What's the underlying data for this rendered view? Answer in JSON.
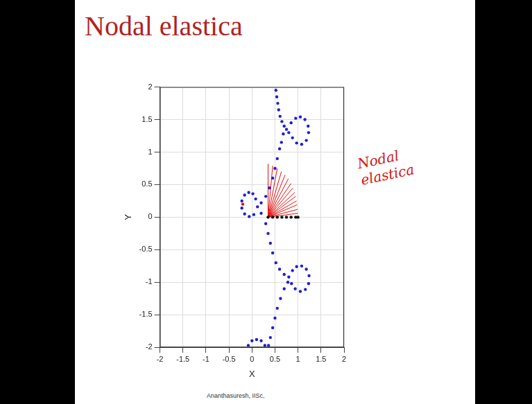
{
  "chart_data": {
    "type": "scatter",
    "title": "Nodal elastica",
    "x_label": "X",
    "y_label": "Y",
    "annotation": "Nodal elastica",
    "footnote": "Ananthasuresh, IISc,",
    "xlim": [
      -2,
      2
    ],
    "ylim": [
      -2,
      2
    ],
    "xticks": [
      -2,
      -1.5,
      -1,
      -0.5,
      0,
      0.5,
      1,
      1.5,
      2
    ],
    "yticks": [
      -2,
      -1.5,
      -1,
      -0.5,
      0,
      0.5,
      1,
      1.5,
      2
    ],
    "grid": true,
    "series": [
      {
        "type": "scatter",
        "color": "#1f1fd0",
        "marker": "circle",
        "values": [
          [
            0.52,
            1.95
          ],
          [
            0.54,
            1.85
          ],
          [
            0.56,
            1.75
          ],
          [
            0.58,
            1.65
          ],
          [
            0.61,
            1.55
          ],
          [
            0.65,
            1.47
          ],
          [
            0.7,
            1.4
          ],
          [
            0.75,
            1.35
          ],
          [
            0.85,
            1.45
          ],
          [
            0.95,
            1.52
          ],
          [
            1.05,
            1.54
          ],
          [
            1.15,
            1.5
          ],
          [
            1.22,
            1.4
          ],
          [
            1.23,
            1.3
          ],
          [
            1.18,
            1.18
          ],
          [
            1.08,
            1.12
          ],
          [
            0.97,
            1.14
          ],
          [
            0.88,
            1.22
          ],
          [
            0.8,
            1.3
          ],
          [
            0.68,
            1.28
          ],
          [
            0.64,
            1.15
          ],
          [
            0.6,
            1.05
          ],
          [
            0.55,
            0.9
          ],
          [
            0.5,
            0.75
          ],
          [
            0.45,
            0.6
          ],
          [
            0.38,
            0.45
          ],
          [
            0.3,
            0.32
          ],
          [
            0.2,
            0.22
          ],
          [
            0.12,
            0.16
          ],
          [
            0.08,
            0.28
          ],
          [
            0.02,
            0.36
          ],
          [
            -0.07,
            0.38
          ],
          [
            -0.16,
            0.34
          ],
          [
            -0.22,
            0.25
          ],
          [
            -0.22,
            0.14
          ],
          [
            -0.16,
            0.05
          ],
          [
            -0.06,
            0.01
          ],
          [
            0.04,
            0.04
          ],
          [
            0.2,
            0.06
          ],
          [
            0.3,
            -0.1
          ],
          [
            0.35,
            -0.25
          ],
          [
            0.4,
            -0.4
          ],
          [
            0.45,
            -0.55
          ],
          [
            0.52,
            -0.7
          ],
          [
            0.6,
            -0.8
          ],
          [
            0.7,
            -0.88
          ],
          [
            0.8,
            -0.92
          ],
          [
            0.88,
            -0.82
          ],
          [
            0.97,
            -0.76
          ],
          [
            1.08,
            -0.75
          ],
          [
            1.18,
            -0.8
          ],
          [
            1.24,
            -0.9
          ],
          [
            1.23,
            -1.02
          ],
          [
            1.16,
            -1.11
          ],
          [
            1.05,
            -1.14
          ],
          [
            0.94,
            -1.1
          ],
          [
            0.86,
            -1.02
          ],
          [
            0.78,
            -1.0
          ],
          [
            0.7,
            -1.1
          ],
          [
            0.62,
            -1.25
          ],
          [
            0.55,
            -1.4
          ],
          [
            0.5,
            -1.55
          ],
          [
            0.45,
            -1.7
          ],
          [
            0.4,
            -1.85
          ],
          [
            0.36,
            -1.97
          ],
          [
            0.28,
            -1.97
          ],
          [
            0.2,
            -1.9
          ],
          [
            0.1,
            -1.88
          ],
          [
            0.0,
            -1.9
          ],
          [
            -0.08,
            -1.97
          ]
        ]
      },
      {
        "type": "scatter",
        "color": "#111111",
        "marker": "circle",
        "values": [
          [
            0.35,
            0
          ],
          [
            0.45,
            0
          ],
          [
            0.55,
            0
          ],
          [
            0.65,
            0
          ],
          [
            0.75,
            0
          ],
          [
            0.85,
            0
          ],
          [
            0.95,
            0
          ],
          [
            1.0,
            0
          ]
        ]
      },
      {
        "type": "scatter",
        "color": "#e01010",
        "marker": "circle",
        "values": [
          [
            -0.2,
            0.2
          ]
        ]
      },
      {
        "type": "line",
        "color": "#e01010",
        "line_style": "solid",
        "values": [
          [
            0.35,
            0
          ],
          [
            1.0,
            0.06
          ]
        ]
      },
      {
        "type": "line",
        "color": "#e01010",
        "line_style": "solid",
        "values": [
          [
            0.35,
            0
          ],
          [
            0.99,
            0.12
          ]
        ]
      },
      {
        "type": "line",
        "color": "#e01010",
        "line_style": "solid",
        "values": [
          [
            0.35,
            0
          ],
          [
            0.98,
            0.19
          ]
        ]
      },
      {
        "type": "line",
        "color": "#e01010",
        "line_style": "solid",
        "values": [
          [
            0.35,
            0
          ],
          [
            0.97,
            0.25
          ]
        ]
      },
      {
        "type": "line",
        "color": "#e01010",
        "line_style": "solid",
        "values": [
          [
            0.35,
            0
          ],
          [
            0.95,
            0.32
          ]
        ]
      },
      {
        "type": "line",
        "color": "#e01010",
        "line_style": "solid",
        "values": [
          [
            0.35,
            0
          ],
          [
            0.93,
            0.38
          ]
        ]
      },
      {
        "type": "line",
        "color": "#e01010",
        "line_style": "solid",
        "values": [
          [
            0.35,
            0
          ],
          [
            0.89,
            0.45
          ]
        ]
      },
      {
        "type": "line",
        "color": "#e01010",
        "line_style": "solid",
        "values": [
          [
            0.35,
            0
          ],
          [
            0.85,
            0.52
          ]
        ]
      },
      {
        "type": "line",
        "color": "#e01010",
        "line_style": "solid",
        "values": [
          [
            0.35,
            0
          ],
          [
            0.79,
            0.59
          ]
        ]
      },
      {
        "type": "line",
        "color": "#e01010",
        "line_style": "solid",
        "values": [
          [
            0.35,
            0
          ],
          [
            0.72,
            0.65
          ]
        ]
      },
      {
        "type": "line",
        "color": "#e01010",
        "line_style": "solid",
        "values": [
          [
            0.35,
            0
          ],
          [
            0.64,
            0.7
          ]
        ]
      },
      {
        "type": "line",
        "color": "#e01010",
        "line_style": "solid",
        "values": [
          [
            0.35,
            0
          ],
          [
            0.55,
            0.75
          ]
        ]
      },
      {
        "type": "line",
        "color": "#e01010",
        "line_style": "solid",
        "values": [
          [
            0.35,
            0
          ],
          [
            0.45,
            0.79
          ]
        ]
      },
      {
        "type": "line",
        "color": "#e01010",
        "line_style": "solid",
        "values": [
          [
            0.35,
            0
          ],
          [
            0.35,
            0.82
          ]
        ]
      }
    ]
  }
}
